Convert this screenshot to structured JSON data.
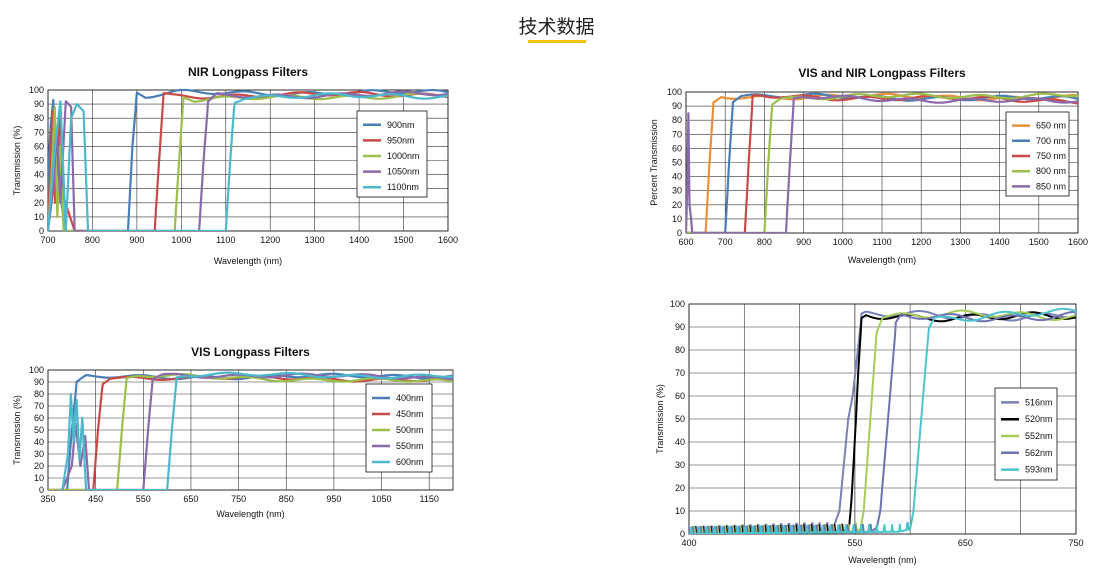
{
  "page": {
    "title": "技术数据"
  },
  "chart_data": [
    {
      "id": "nir",
      "type": "line",
      "title": "NIR Longpass Filters",
      "xlabel": "Wavelength (nm)",
      "ylabel": "Transmission (%)",
      "xlim": [
        700,
        1600
      ],
      "ylim": [
        0,
        100
      ],
      "xticks": [
        700,
        800,
        900,
        1000,
        1100,
        1200,
        1300,
        1400,
        1500,
        1600
      ],
      "yticks": [
        0,
        10,
        20,
        30,
        40,
        50,
        60,
        70,
        80,
        90,
        100
      ],
      "grid": true,
      "legend": "right",
      "series": [
        {
          "name": "900nm",
          "color": "#4a7fb5",
          "cut_on": 885,
          "plateau": 98,
          "x": [
            700,
            880,
            890,
            900,
            920,
            1000,
            1600
          ],
          "y": [
            0,
            0,
            60,
            98,
            95,
            98,
            98
          ]
        },
        {
          "name": "950nm",
          "color": "#c84a48",
          "cut_on": 955,
          "plateau": 98,
          "x": [
            700,
            940,
            950,
            960,
            980,
            1600
          ],
          "y": [
            0,
            0,
            50,
            97,
            96,
            97
          ]
        },
        {
          "name": "1000nm",
          "color": "#9cbe4a",
          "cut_on": 1000,
          "plateau": 97,
          "x": [
            700,
            985,
            995,
            1005,
            1030,
            1600
          ],
          "y": [
            0,
            0,
            50,
            96,
            93,
            97
          ]
        },
        {
          "name": "1050nm",
          "color": "#8a6aaa",
          "cut_on": 1055,
          "plateau": 97,
          "x": [
            700,
            1040,
            1050,
            1060,
            1080,
            1600
          ],
          "y": [
            0,
            0,
            50,
            90,
            96,
            97
          ]
        },
        {
          "name": "1100nm",
          "color": "#4bb8cc",
          "cut_on": 1112,
          "plateau": 96,
          "x": [
            700,
            1100,
            1110,
            1120,
            1140,
            1600
          ],
          "y": [
            0,
            0,
            50,
            93,
            95,
            96
          ]
        }
      ]
    },
    {
      "id": "visnir",
      "type": "line",
      "title": "VIS and NIR Longpass Filters",
      "xlabel": "Wavelength (nm)",
      "ylabel": "Percent Transmission",
      "xlim": [
        600,
        1600
      ],
      "ylim": [
        0,
        100
      ],
      "xticks": [
        600,
        700,
        800,
        900,
        1000,
        1100,
        1200,
        1300,
        1400,
        1500,
        1600
      ],
      "yticks": [
        0,
        10,
        20,
        30,
        40,
        50,
        60,
        70,
        80,
        90,
        100
      ],
      "grid": true,
      "legend": "right",
      "series": [
        {
          "name": "650 nm",
          "color": "#e8913a",
          "cut_on": 660,
          "plateau": 97,
          "x": [
            600,
            650,
            660,
            670,
            690,
            1600
          ],
          "y": [
            0,
            0,
            50,
            92,
            97,
            96
          ]
        },
        {
          "name": "700 nm",
          "color": "#4a7fb5",
          "cut_on": 710,
          "plateau": 97,
          "x": [
            600,
            700,
            710,
            720,
            740,
            1600
          ],
          "y": [
            0,
            0,
            50,
            94,
            97,
            95
          ]
        },
        {
          "name": "750 nm",
          "color": "#c84a48",
          "cut_on": 760,
          "plateau": 97,
          "x": [
            600,
            750,
            760,
            770,
            790,
            1600
          ],
          "y": [
            0,
            0,
            50,
            96,
            97,
            94
          ]
        },
        {
          "name": "800 nm",
          "color": "#9cbe4a",
          "cut_on": 812,
          "plateau": 97,
          "x": [
            600,
            800,
            810,
            820,
            840,
            1600
          ],
          "y": [
            0,
            0,
            50,
            93,
            96,
            98
          ]
        },
        {
          "name": "850 nm",
          "color": "#8a6aaa",
          "cut_on": 868,
          "plateau": 96,
          "x": [
            600,
            855,
            865,
            875,
            900,
            1600
          ],
          "y": [
            0,
            0,
            50,
            94,
            96,
            93
          ]
        }
      ]
    },
    {
      "id": "vis",
      "type": "line",
      "title": "VIS Longpass Filters",
      "xlabel": "Wavelength (nm)",
      "ylabel": "Transmission (%)",
      "xlim": [
        350,
        1200
      ],
      "ylim": [
        0,
        100
      ],
      "xticks": [
        350,
        450,
        550,
        650,
        750,
        850,
        950,
        1050,
        1150
      ],
      "yticks": [
        0,
        10,
        20,
        30,
        40,
        50,
        60,
        70,
        80,
        90,
        100
      ],
      "grid": true,
      "legend": "right",
      "series": [
        {
          "name": "400nm",
          "color": "#4a7fb5",
          "cut_on": 400,
          "plateau": 96,
          "x": [
            350,
            390,
            400,
            410,
            430,
            1200
          ],
          "y": [
            0,
            0,
            50,
            88,
            94,
            95
          ]
        },
        {
          "name": "450nm",
          "color": "#c84a48",
          "cut_on": 455,
          "plateau": 96,
          "x": [
            350,
            445,
            455,
            465,
            480,
            1200
          ],
          "y": [
            0,
            0,
            50,
            90,
            94,
            92
          ]
        },
        {
          "name": "500nm",
          "color": "#9cbe4a",
          "cut_on": 505,
          "plateau": 96,
          "x": [
            350,
            495,
            505,
            515,
            540,
            1200
          ],
          "y": [
            0,
            0,
            50,
            92,
            95,
            90
          ]
        },
        {
          "name": "550nm",
          "color": "#8a6aaa",
          "cut_on": 560,
          "plateau": 96,
          "x": [
            350,
            550,
            560,
            570,
            590,
            1200
          ],
          "y": [
            0,
            0,
            50,
            93,
            96,
            94
          ]
        },
        {
          "name": "600nm",
          "color": "#4bb8cc",
          "cut_on": 610,
          "plateau": 96,
          "x": [
            350,
            600,
            610,
            620,
            640,
            1200
          ],
          "y": [
            0,
            0,
            50,
            94,
            96,
            95
          ]
        }
      ]
    },
    {
      "id": "narrow",
      "type": "line",
      "title": "",
      "xlabel": "Wavelength (nm)",
      "ylabel": "Transmission (%)",
      "xlim": [
        400,
        750
      ],
      "ylim": [
        0,
        100
      ],
      "xticks": [
        400,
        550,
        650,
        750
      ],
      "yticks": [
        0,
        10,
        20,
        30,
        40,
        50,
        60,
        70,
        80,
        90,
        100
      ],
      "grid": true,
      "legend": "right",
      "series": [
        {
          "name": "516nm",
          "color": "#7a80b8",
          "x": [
            400,
            530,
            536,
            540,
            544,
            548,
            556,
            560,
            750
          ],
          "y": [
            0,
            2,
            10,
            30,
            50,
            60,
            94,
            95,
            95
          ]
        },
        {
          "name": "520nm",
          "color": "#000000",
          "x": [
            400,
            540,
            545,
            547,
            551,
            553,
            556,
            560,
            750
          ],
          "y": [
            0,
            1,
            4,
            15,
            50,
            70,
            93,
            95,
            94
          ]
        },
        {
          "name": "552nm",
          "color": "#a8cc58",
          "x": [
            400,
            545,
            555,
            558,
            564,
            570,
            575,
            750
          ],
          "y": [
            0,
            1,
            2,
            10,
            50,
            90,
            95,
            95
          ]
        },
        {
          "name": "562nm",
          "color": "#6e72ae",
          "x": [
            400,
            565,
            570,
            573,
            580,
            587,
            592,
            750
          ],
          "y": [
            0,
            1,
            3,
            10,
            50,
            90,
            94,
            95
          ]
        },
        {
          "name": "593nm",
          "color": "#4bc4cc",
          "x": [
            400,
            590,
            600,
            603,
            610,
            617,
            622,
            750
          ],
          "y": [
            0,
            1,
            2,
            10,
            50,
            90,
            94,
            96
          ]
        }
      ]
    }
  ]
}
